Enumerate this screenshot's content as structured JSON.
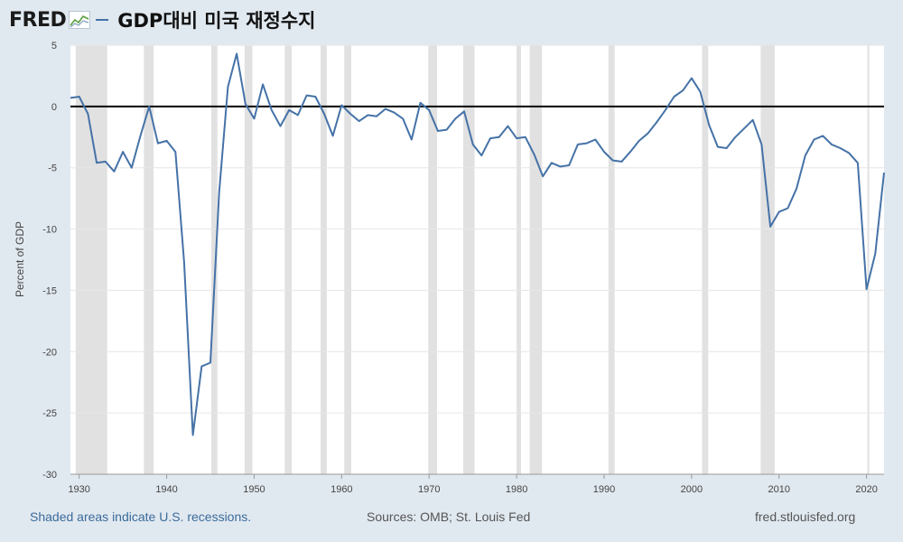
{
  "header": {
    "logo": "FRED",
    "title": "GDP대비 미국 재정수지"
  },
  "footer": {
    "recessions_note": "Shaded areas indicate U.S. recessions.",
    "sources": "Sources: OMB; St. Louis Fed",
    "site": "fred.stlouisfed.org"
  },
  "colors": {
    "background": "#e1e9f0",
    "plot": "#ffffff",
    "line": "#4572a7",
    "recession": "#e1e1e1",
    "zero_line": "#000000"
  },
  "chart_data": {
    "type": "line",
    "title": "GDP대비 미국 재정수지",
    "xlabel": "",
    "ylabel": "Percent of GDP",
    "xlim": [
      1929,
      2022
    ],
    "ylim": [
      -30,
      5
    ],
    "xticks": [
      1930,
      1940,
      1950,
      1960,
      1970,
      1980,
      1990,
      2000,
      2010,
      2020
    ],
    "yticks": [
      5,
      0,
      -5,
      -10,
      -15,
      -20,
      -25,
      -30
    ],
    "grid": true,
    "reference_line": 0,
    "recessions": [
      [
        1929.6,
        1933.2
      ],
      [
        1937.4,
        1938.5
      ],
      [
        1945.1,
        1945.8
      ],
      [
        1948.9,
        1949.8
      ],
      [
        1953.5,
        1954.3
      ],
      [
        1957.6,
        1958.3
      ],
      [
        1960.3,
        1961.1
      ],
      [
        1969.9,
        1970.9
      ],
      [
        1973.9,
        1975.2
      ],
      [
        1980.0,
        1980.5
      ],
      [
        1981.5,
        1982.9
      ],
      [
        1990.5,
        1991.2
      ],
      [
        2001.2,
        2001.9
      ],
      [
        2007.9,
        2009.5
      ],
      [
        2020.1,
        2020.3
      ]
    ],
    "series": [
      {
        "name": "GDP대비 미국 재정수지",
        "x": [
          1929,
          1930,
          1931,
          1932,
          1933,
          1934,
          1935,
          1936,
          1937,
          1938,
          1939,
          1940,
          1941,
          1942,
          1943,
          1944,
          1945,
          1946,
          1947,
          1948,
          1949,
          1950,
          1951,
          1952,
          1953,
          1954,
          1955,
          1956,
          1957,
          1958,
          1959,
          1960,
          1961,
          1962,
          1963,
          1964,
          1965,
          1966,
          1967,
          1968,
          1969,
          1970,
          1971,
          1972,
          1973,
          1974,
          1975,
          1976,
          1977,
          1978,
          1979,
          1980,
          1981,
          1982,
          1983,
          1984,
          1985,
          1986,
          1987,
          1988,
          1989,
          1990,
          1991,
          1992,
          1993,
          1994,
          1995,
          1996,
          1997,
          1998,
          1999,
          2000,
          2001,
          2002,
          2003,
          2004,
          2005,
          2006,
          2007,
          2008,
          2009,
          2010,
          2011,
          2012,
          2013,
          2014,
          2015,
          2016,
          2017,
          2018,
          2019,
          2020,
          2021,
          2022
        ],
        "values": [
          0.7,
          0.8,
          -0.6,
          -4.6,
          -4.5,
          -5.3,
          -3.7,
          -5.0,
          -2.4,
          0.0,
          -3.0,
          -2.8,
          -3.7,
          -12.7,
          -26.8,
          -21.2,
          -20.9,
          -7.0,
          1.6,
          4.3,
          0.2,
          -1.0,
          1.8,
          -0.3,
          -1.6,
          -0.3,
          -0.7,
          0.9,
          0.8,
          -0.6,
          -2.4,
          0.1,
          -0.6,
          -1.2,
          -0.7,
          -0.8,
          -0.2,
          -0.5,
          -1.0,
          -2.7,
          0.3,
          -0.3,
          -2.0,
          -1.9,
          -1.0,
          -0.4,
          -3.1,
          -4.0,
          -2.6,
          -2.5,
          -1.6,
          -2.6,
          -2.5,
          -3.9,
          -5.7,
          -4.6,
          -4.9,
          -4.8,
          -3.1,
          -3.0,
          -2.7,
          -3.7,
          -4.4,
          -4.5,
          -3.7,
          -2.8,
          -2.2,
          -1.3,
          -0.3,
          0.8,
          1.3,
          2.3,
          1.2,
          -1.5,
          -3.3,
          -3.4,
          -2.5,
          -1.8,
          -1.1,
          -3.1,
          -9.8,
          -8.6,
          -8.3,
          -6.7,
          -4.0,
          -2.7,
          -2.4,
          -3.1,
          -3.4,
          -3.8,
          -4.6,
          -14.9,
          -12.0,
          -5.4
        ]
      }
    ]
  }
}
